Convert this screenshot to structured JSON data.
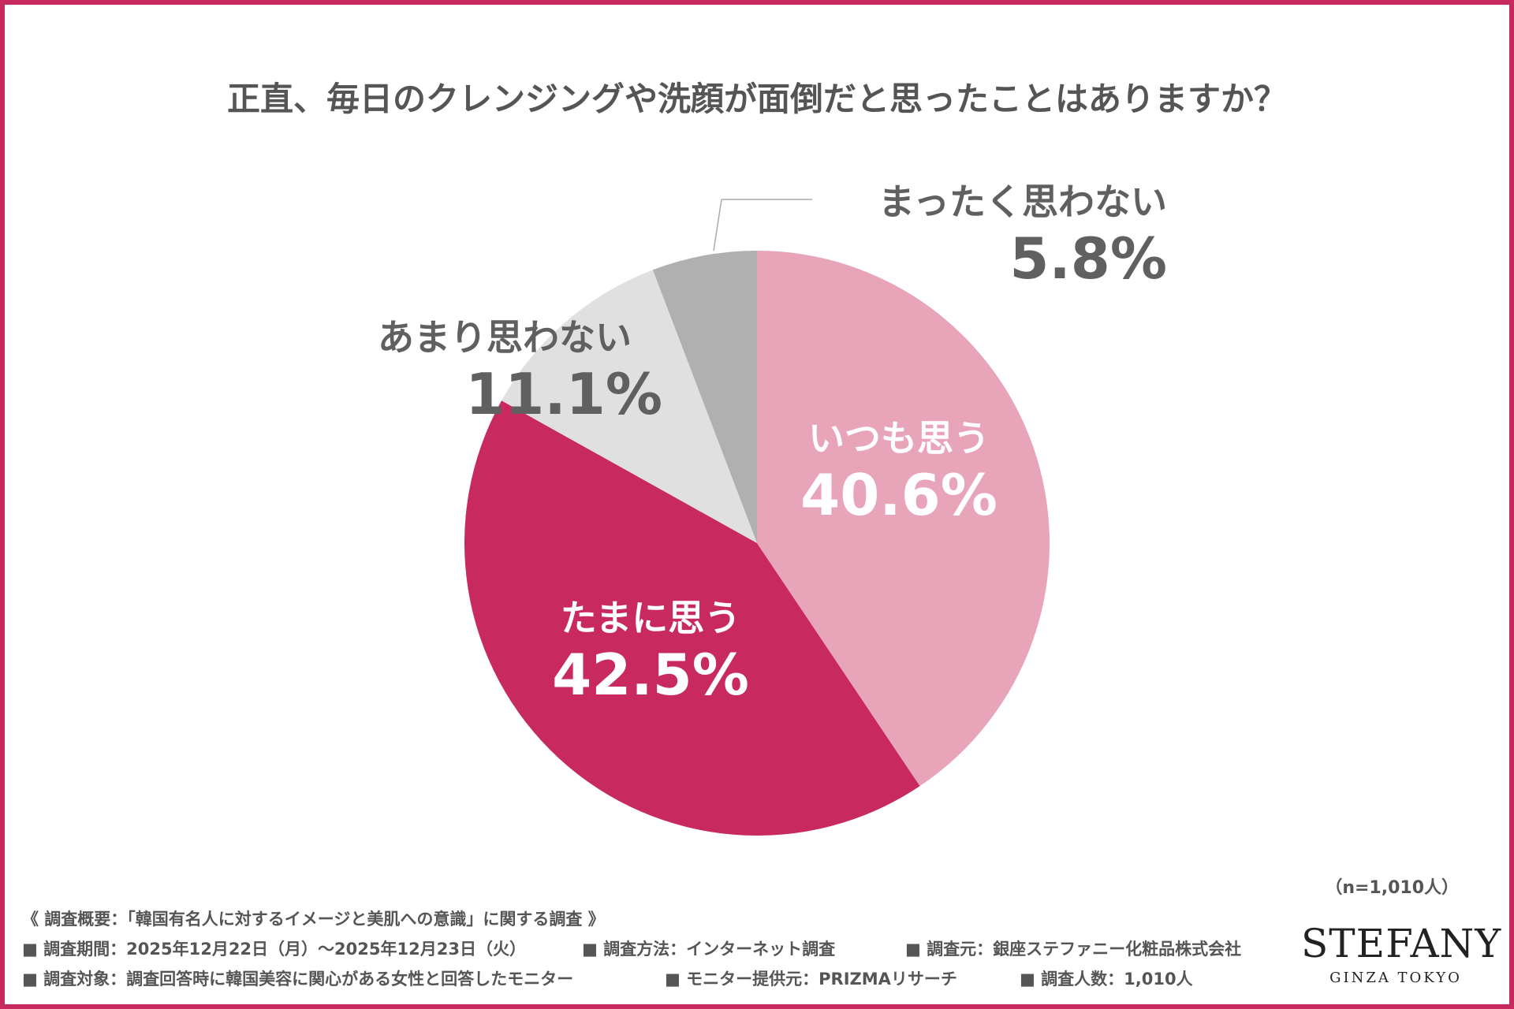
{
  "chart_data": {
    "type": "pie",
    "title": "正直、毎日のクレンジングや洗顔が面倒だと思ったことはありますか？",
    "slices": [
      {
        "label": "いつも思う",
        "value": 40.6,
        "display": "40.6%",
        "color": "#E8A5BA"
      },
      {
        "label": "たまに思う",
        "value": 42.5,
        "display": "42.5%",
        "color": "#C8295F"
      },
      {
        "label": "あまり思わない",
        "value": 11.1,
        "display": "11.1%",
        "color": "#E0E0E0"
      },
      {
        "label": "まったく思わない",
        "value": 5.8,
        "display": "5.8%",
        "color": "#B0B0B0"
      }
    ],
    "start": "top",
    "direction": "clockwise"
  },
  "sample_size": "（n=1,010人）",
  "footer": {
    "heading": "《 調査概要：「韓国有名人に対するイメージと美肌への意識」に関する調査 》",
    "row1": [
      "■ 調査期間：2025年12月22日（月）～2025年12月23日（火）",
      "■ 調査方法：インターネット調査",
      "■ 調査元：銀座ステファニー化粧品株式会社"
    ],
    "row2": [
      "■ 調査対象：調査回答時に韓国美容に関心がある女性と回答したモニター",
      "■ モニター提供元：PRIZMAリサーチ",
      "■ 調査人数：1,010人"
    ]
  },
  "logo": {
    "name": "STEFANY",
    "sub": "GINZA TOKYO"
  },
  "colors": {
    "border": "#C8295F"
  }
}
